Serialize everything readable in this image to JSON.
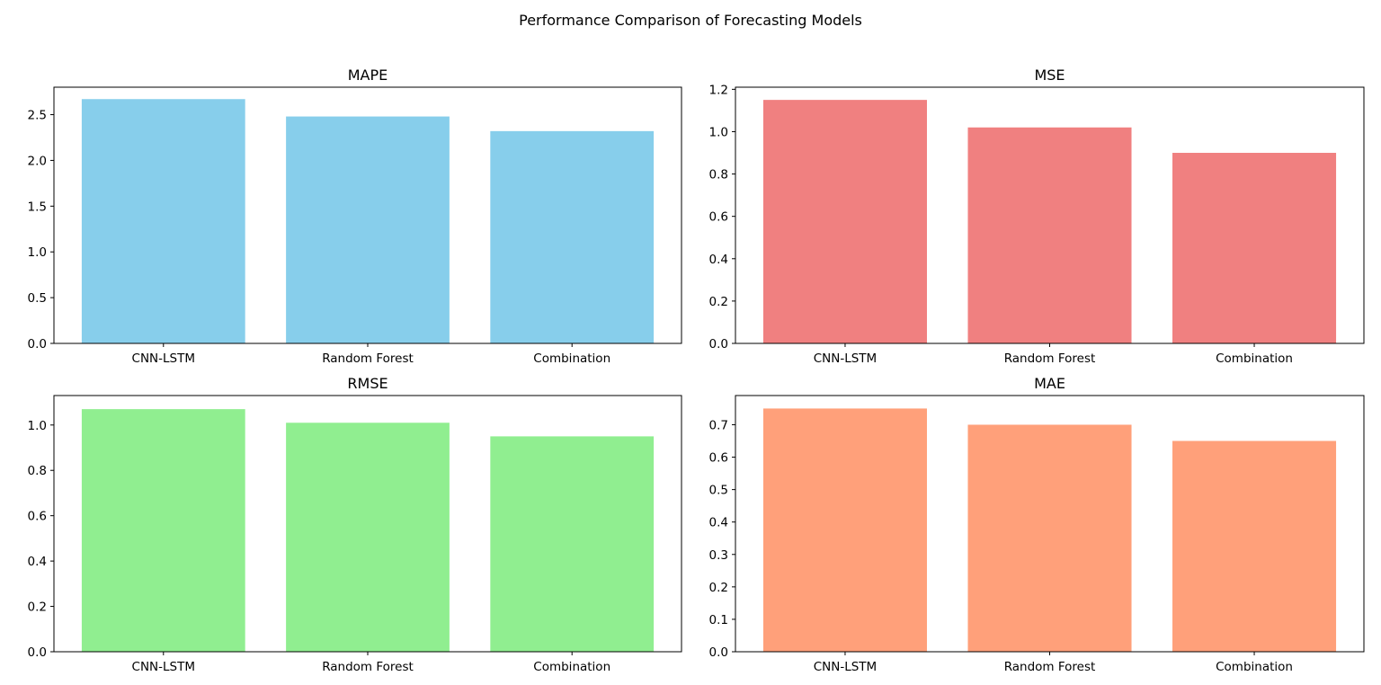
{
  "figure": {
    "title": "Performance Comparison of Forecasting Models"
  },
  "chart_data": [
    {
      "type": "bar",
      "title": "MAPE",
      "categories": [
        "CNN-LSTM",
        "Random Forest",
        "Combination"
      ],
      "values": [
        2.67,
        2.48,
        2.32
      ],
      "ylim": [
        0,
        2.8
      ],
      "yticks": [
        "0.0",
        "0.5",
        "1.0",
        "1.5",
        "2.0",
        "2.5"
      ],
      "ytick_values": [
        0,
        0.5,
        1.0,
        1.5,
        2.0,
        2.5
      ],
      "color": "#87ceeb",
      "xlabel": "",
      "ylabel": "",
      "grid": false
    },
    {
      "type": "bar",
      "title": "MSE",
      "categories": [
        "CNN-LSTM",
        "Random Forest",
        "Combination"
      ],
      "values": [
        1.15,
        1.02,
        0.9
      ],
      "ylim": [
        0,
        1.21
      ],
      "yticks": [
        "0.0",
        "0.2",
        "0.4",
        "0.6",
        "0.8",
        "1.0",
        "1.2"
      ],
      "ytick_values": [
        0,
        0.2,
        0.4,
        0.6,
        0.8,
        1.0,
        1.2
      ],
      "color": "#f08080",
      "xlabel": "",
      "ylabel": "",
      "grid": false
    },
    {
      "type": "bar",
      "title": "RMSE",
      "categories": [
        "CNN-LSTM",
        "Random Forest",
        "Combination"
      ],
      "values": [
        1.07,
        1.01,
        0.95
      ],
      "ylim": [
        0,
        1.13
      ],
      "yticks": [
        "0.0",
        "0.2",
        "0.4",
        "0.6",
        "0.8",
        "1.0"
      ],
      "ytick_values": [
        0,
        0.2,
        0.4,
        0.6,
        0.8,
        1.0
      ],
      "color": "#90ee90",
      "xlabel": "",
      "ylabel": "",
      "grid": false
    },
    {
      "type": "bar",
      "title": "MAE",
      "categories": [
        "CNN-LSTM",
        "Random Forest",
        "Combination"
      ],
      "values": [
        0.75,
        0.7,
        0.65
      ],
      "ylim": [
        0,
        0.79
      ],
      "yticks": [
        "0.0",
        "0.1",
        "0.2",
        "0.3",
        "0.4",
        "0.5",
        "0.6",
        "0.7"
      ],
      "ytick_values": [
        0,
        0.1,
        0.2,
        0.3,
        0.4,
        0.5,
        0.6,
        0.7
      ],
      "color": "#ffa07a",
      "xlabel": "",
      "ylabel": "",
      "grid": false
    }
  ]
}
